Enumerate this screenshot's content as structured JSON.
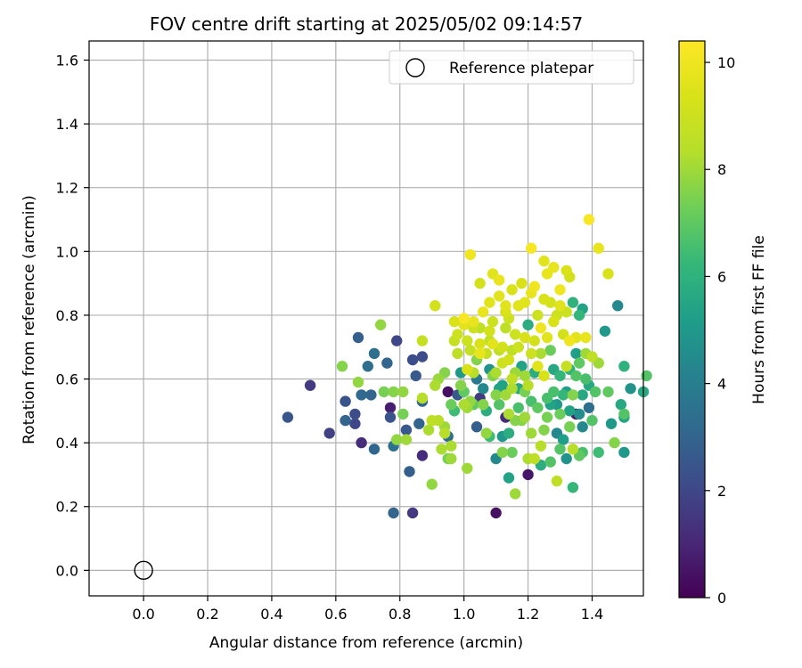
{
  "chart_data": {
    "type": "scatter",
    "title": "FOV centre drift starting at 2025/05/02 09:14:57",
    "xlabel": "Angular distance from reference (arcmin)",
    "ylabel": "Rotation from reference (arcmin)",
    "xlim": [
      -0.17,
      1.56
    ],
    "ylim": [
      -0.08,
      1.66
    ],
    "xticks": [
      0.0,
      0.2,
      0.4,
      0.6,
      0.8,
      1.0,
      1.2,
      1.4
    ],
    "xtick_labels": [
      "0.0",
      "0.2",
      "0.4",
      "0.6",
      "0.8",
      "1.0",
      "1.2",
      "1.4"
    ],
    "yticks": [
      0.0,
      0.2,
      0.4,
      0.6,
      0.8,
      1.0,
      1.2,
      1.4,
      1.6
    ],
    "ytick_labels": [
      "0.0",
      "0.2",
      "0.4",
      "0.6",
      "0.8",
      "1.0",
      "1.2",
      "1.4",
      "1.6"
    ],
    "grid": true,
    "legend": {
      "position": "top-right",
      "entries": [
        "Reference platepar"
      ]
    },
    "reference_point": {
      "name": "Reference platepar",
      "x": 0.0,
      "y": 0.0
    },
    "colorbar": {
      "label": "Hours from first FF file",
      "colormap": "viridis",
      "range": [
        0,
        10.4
      ],
      "ticks": [
        0,
        2,
        4,
        6,
        8,
        10
      ],
      "tick_labels": [
        "0",
        "2",
        "4",
        "6",
        "8",
        "10"
      ]
    },
    "points": [
      [
        0.45,
        0.48,
        2.5
      ],
      [
        0.52,
        0.58,
        1.6
      ],
      [
        0.58,
        0.43,
        1.8
      ],
      [
        0.62,
        0.64,
        7.6
      ],
      [
        0.63,
        0.53,
        2.4
      ],
      [
        0.63,
        0.47,
        3.0
      ],
      [
        0.66,
        0.49,
        2.2
      ],
      [
        0.66,
        0.46,
        2.0
      ],
      [
        0.67,
        0.73,
        2.8
      ],
      [
        0.67,
        0.59,
        7.8
      ],
      [
        0.68,
        0.4,
        1.2
      ],
      [
        0.68,
        0.55,
        3.2
      ],
      [
        0.7,
        0.64,
        3.4
      ],
      [
        0.71,
        0.55,
        3.0
      ],
      [
        0.72,
        0.68,
        3.4
      ],
      [
        0.72,
        0.38,
        3.1
      ],
      [
        0.74,
        0.77,
        7.8
      ],
      [
        0.75,
        0.56,
        7.4
      ],
      [
        0.76,
        0.65,
        3.0
      ],
      [
        0.77,
        0.51,
        0.8
      ],
      [
        0.77,
        0.48,
        2.4
      ],
      [
        0.78,
        0.39,
        3.5
      ],
      [
        0.78,
        0.56,
        7.6
      ],
      [
        0.78,
        0.18,
        3.0
      ],
      [
        0.79,
        0.72,
        2.0
      ],
      [
        0.79,
        0.41,
        7.8
      ],
      [
        0.81,
        0.49,
        7.4
      ],
      [
        0.81,
        0.56,
        7.8
      ],
      [
        0.82,
        0.44,
        2.6
      ],
      [
        0.82,
        0.41,
        8.0
      ],
      [
        0.83,
        0.31,
        2.8
      ],
      [
        0.84,
        0.18,
        1.6
      ],
      [
        0.84,
        0.66,
        2.2
      ],
      [
        0.85,
        0.61,
        2.6
      ],
      [
        0.86,
        0.46,
        3.0
      ],
      [
        0.87,
        0.36,
        1.2
      ],
      [
        0.87,
        0.53,
        3.0
      ],
      [
        0.87,
        0.67,
        2.2
      ],
      [
        0.87,
        0.54,
        8.4
      ],
      [
        0.87,
        0.72,
        8.8
      ],
      [
        0.89,
        0.44,
        8.2
      ],
      [
        0.9,
        0.27,
        7.8
      ],
      [
        0.9,
        0.47,
        8.6
      ],
      [
        0.91,
        0.58,
        8.2
      ],
      [
        0.91,
        0.83,
        9.2
      ],
      [
        0.92,
        0.47,
        8.4
      ],
      [
        0.92,
        0.6,
        7.9
      ],
      [
        0.93,
        0.38,
        8.2
      ],
      [
        0.94,
        0.45,
        8.0
      ],
      [
        0.94,
        0.43,
        8.4
      ],
      [
        0.94,
        0.62,
        7.6
      ],
      [
        0.95,
        0.56,
        0.4
      ],
      [
        0.95,
        0.42,
        3.4
      ],
      [
        0.95,
        0.35,
        7.4
      ],
      [
        0.96,
        0.52,
        7.2
      ],
      [
        0.96,
        0.39,
        8.2
      ],
      [
        0.96,
        0.35,
        8.0
      ],
      [
        0.97,
        0.72,
        8.8
      ],
      [
        0.97,
        0.78,
        9.4
      ],
      [
        0.97,
        0.5,
        6.4
      ],
      [
        0.98,
        0.55,
        2.6
      ],
      [
        0.98,
        0.68,
        8.6
      ],
      [
        0.98,
        0.74,
        9.0
      ],
      [
        0.99,
        0.58,
        7.6
      ],
      [
        0.99,
        0.62,
        5.0
      ],
      [
        1.0,
        0.77,
        9.6
      ],
      [
        1.0,
        0.79,
        10.2
      ],
      [
        1.0,
        0.52,
        8.2
      ],
      [
        1.0,
        0.56,
        7.0
      ],
      [
        1.01,
        0.32,
        8.0
      ],
      [
        1.01,
        0.51,
        8.0
      ],
      [
        1.01,
        0.63,
        9.4
      ],
      [
        1.01,
        0.72,
        9.0
      ],
      [
        1.02,
        0.99,
        10.0
      ],
      [
        1.02,
        0.69,
        8.8
      ],
      [
        1.02,
        0.53,
        7.8
      ],
      [
        1.03,
        0.78,
        9.8
      ],
      [
        1.03,
        0.62,
        8.4
      ],
      [
        1.03,
        0.76,
        9.0
      ],
      [
        1.03,
        0.52,
        7.0
      ],
      [
        1.04,
        0.6,
        3.8
      ],
      [
        1.04,
        0.66,
        7.6
      ],
      [
        1.04,
        0.45,
        2.8
      ],
      [
        1.05,
        0.9,
        9.2
      ],
      [
        1.05,
        0.76,
        8.6
      ],
      [
        1.05,
        0.71,
        9.4
      ],
      [
        1.05,
        0.54,
        1.6
      ],
      [
        1.05,
        0.68,
        9.8
      ],
      [
        1.06,
        0.57,
        4.4
      ],
      [
        1.06,
        0.81,
        9.8
      ],
      [
        1.06,
        0.52,
        7.6
      ],
      [
        1.07,
        0.68,
        8.8
      ],
      [
        1.07,
        0.5,
        5.8
      ],
      [
        1.07,
        0.43,
        7.8
      ],
      [
        1.08,
        0.75,
        9.2
      ],
      [
        1.08,
        0.84,
        9.6
      ],
      [
        1.08,
        0.63,
        4.8
      ],
      [
        1.08,
        0.72,
        8.6
      ],
      [
        1.08,
        0.42,
        6.4
      ],
      [
        1.09,
        0.93,
        9.6
      ],
      [
        1.09,
        0.78,
        9.0
      ],
      [
        1.09,
        0.71,
        9.6
      ],
      [
        1.09,
        0.61,
        7.6
      ],
      [
        1.1,
        0.55,
        7.6
      ],
      [
        1.1,
        0.62,
        8.2
      ],
      [
        1.1,
        0.35,
        4.4
      ],
      [
        1.1,
        0.18,
        0.4
      ],
      [
        1.11,
        0.86,
        9.6
      ],
      [
        1.11,
        0.91,
        9.8
      ],
      [
        1.11,
        0.69,
        8.6
      ],
      [
        1.11,
        0.57,
        5.4
      ],
      [
        1.11,
        0.52,
        6.8
      ],
      [
        1.12,
        0.58,
        5.4
      ],
      [
        1.12,
        0.42,
        5.0
      ],
      [
        1.12,
        0.37,
        7.6
      ],
      [
        1.12,
        0.65,
        9.0
      ],
      [
        1.12,
        0.7,
        9.2
      ],
      [
        1.13,
        0.76,
        8.6
      ],
      [
        1.13,
        0.81,
        9.4
      ],
      [
        1.13,
        0.48,
        1.2
      ],
      [
        1.13,
        0.83,
        9.6
      ],
      [
        1.13,
        0.55,
        8.0
      ],
      [
        1.14,
        0.79,
        9.0
      ],
      [
        1.14,
        0.66,
        9.2
      ],
      [
        1.14,
        0.49,
        8.2
      ],
      [
        1.14,
        0.43,
        5.8
      ],
      [
        1.14,
        0.29,
        5.4
      ],
      [
        1.15,
        0.69,
        8.6
      ],
      [
        1.15,
        0.57,
        8.2
      ],
      [
        1.15,
        0.6,
        8.6
      ],
      [
        1.15,
        0.37,
        7.2
      ],
      [
        1.15,
        0.88,
        9.4
      ],
      [
        1.16,
        0.74,
        9.0
      ],
      [
        1.16,
        0.47,
        7.6
      ],
      [
        1.16,
        0.24,
        8.0
      ],
      [
        1.16,
        0.62,
        8.0
      ],
      [
        1.17,
        0.83,
        9.6
      ],
      [
        1.17,
        0.7,
        9.0
      ],
      [
        1.17,
        0.57,
        5.6
      ],
      [
        1.17,
        0.51,
        6.6
      ],
      [
        1.18,
        0.64,
        5.4
      ],
      [
        1.18,
        0.9,
        9.4
      ],
      [
        1.18,
        0.47,
        7.6
      ],
      [
        1.19,
        0.73,
        9.4
      ],
      [
        1.19,
        0.56,
        7.4
      ],
      [
        1.19,
        0.48,
        8.0
      ],
      [
        1.19,
        0.84,
        9.6
      ],
      [
        1.19,
        0.61,
        8.0
      ],
      [
        1.2,
        0.3,
        0.6
      ],
      [
        1.2,
        0.35,
        8.2
      ],
      [
        1.2,
        0.77,
        5.8
      ],
      [
        1.2,
        0.58,
        8.4
      ],
      [
        1.21,
        1.01,
        10.2
      ],
      [
        1.21,
        0.68,
        9.0
      ],
      [
        1.21,
        0.87,
        9.8
      ],
      [
        1.21,
        0.43,
        8.0
      ],
      [
        1.21,
        0.53,
        6.6
      ],
      [
        1.22,
        0.89,
        10.0
      ],
      [
        1.22,
        0.62,
        5.8
      ],
      [
        1.22,
        0.72,
        9.2
      ],
      [
        1.22,
        0.35,
        8.6
      ],
      [
        1.23,
        0.64,
        9.6
      ],
      [
        1.23,
        0.8,
        9.0
      ],
      [
        1.23,
        0.51,
        7.0
      ],
      [
        1.24,
        0.68,
        8.2
      ],
      [
        1.24,
        0.39,
        8.4
      ],
      [
        1.24,
        0.33,
        5.8
      ],
      [
        1.24,
        0.76,
        10.0
      ],
      [
        1.25,
        0.97,
        9.6
      ],
      [
        1.25,
        0.85,
        9.4
      ],
      [
        1.25,
        0.61,
        9.4
      ],
      [
        1.25,
        0.44,
        7.6
      ],
      [
        1.26,
        0.54,
        6.6
      ],
      [
        1.26,
        0.73,
        9.6
      ],
      [
        1.26,
        0.93,
        9.8
      ],
      [
        1.26,
        0.48,
        7.4
      ],
      [
        1.27,
        0.52,
        5.4
      ],
      [
        1.27,
        0.84,
        9.2
      ],
      [
        1.27,
        0.69,
        7.2
      ],
      [
        1.27,
        0.34,
        6.8
      ],
      [
        1.28,
        0.95,
        9.8
      ],
      [
        1.28,
        0.63,
        5.6
      ],
      [
        1.28,
        0.78,
        9.4
      ],
      [
        1.28,
        0.56,
        6.6
      ],
      [
        1.29,
        0.8,
        9.0
      ],
      [
        1.29,
        0.52,
        5.0
      ],
      [
        1.29,
        0.43,
        4.4
      ],
      [
        1.29,
        0.28,
        8.6
      ],
      [
        1.3,
        0.88,
        10.0
      ],
      [
        1.3,
        0.83,
        9.6
      ],
      [
        1.3,
        0.49,
        7.2
      ],
      [
        1.3,
        0.38,
        6.8
      ],
      [
        1.3,
        0.61,
        6.2
      ],
      [
        1.31,
        0.55,
        6.2
      ],
      [
        1.31,
        0.41,
        5.2
      ],
      [
        1.31,
        0.74,
        9.2
      ],
      [
        1.32,
        0.94,
        9.4
      ],
      [
        1.32,
        0.64,
        8.8
      ],
      [
        1.32,
        0.56,
        5.2
      ],
      [
        1.32,
        0.35,
        4.8
      ],
      [
        1.32,
        0.81,
        9.0
      ],
      [
        1.33,
        0.92,
        9.2
      ],
      [
        1.33,
        0.45,
        7.4
      ],
      [
        1.33,
        0.5,
        5.4
      ],
      [
        1.33,
        0.72,
        10.0
      ],
      [
        1.33,
        0.63,
        6.0
      ],
      [
        1.34,
        0.84,
        6.0
      ],
      [
        1.34,
        0.55,
        7.6
      ],
      [
        1.34,
        0.26,
        6.2
      ],
      [
        1.34,
        0.38,
        8.4
      ],
      [
        1.35,
        0.61,
        6.8
      ],
      [
        1.35,
        0.49,
        0.6
      ],
      [
        1.35,
        0.73,
        9.6
      ],
      [
        1.35,
        0.68,
        5.2
      ],
      [
        1.36,
        0.65,
        7.0
      ],
      [
        1.36,
        0.8,
        6.2
      ],
      [
        1.36,
        0.49,
        4.6
      ],
      [
        1.36,
        0.36,
        7.0
      ],
      [
        1.37,
        0.82,
        5.4
      ],
      [
        1.37,
        0.55,
        5.6
      ],
      [
        1.37,
        0.45,
        4.4
      ],
      [
        1.37,
        0.37,
        6.6
      ],
      [
        1.38,
        0.6,
        6.6
      ],
      [
        1.38,
        0.73,
        9.8
      ],
      [
        1.38,
        0.68,
        8.0
      ],
      [
        1.39,
        1.1,
        10.2
      ],
      [
        1.39,
        0.51,
        3.4
      ],
      [
        1.39,
        0.58,
        5.6
      ],
      [
        1.4,
        0.67,
        8.6
      ],
      [
        1.4,
        0.47,
        6.8
      ],
      [
        1.41,
        0.56,
        6.8
      ],
      [
        1.42,
        0.65,
        8.0
      ],
      [
        1.42,
        1.01,
        9.8
      ],
      [
        1.42,
        0.37,
        6.4
      ],
      [
        1.44,
        0.75,
        5.0
      ],
      [
        1.45,
        0.56,
        7.0
      ],
      [
        1.45,
        0.93,
        9.4
      ],
      [
        1.46,
        0.46,
        5.0
      ],
      [
        1.47,
        0.4,
        7.6
      ],
      [
        1.48,
        0.83,
        4.4
      ],
      [
        1.49,
        0.52,
        5.6
      ],
      [
        1.5,
        0.49,
        6.8
      ],
      [
        1.5,
        0.64,
        6.0
      ],
      [
        1.5,
        0.37,
        5.0
      ],
      [
        1.5,
        0.48,
        5.4
      ],
      [
        1.52,
        0.57,
        4.8
      ],
      [
        1.56,
        0.56,
        5.6
      ],
      [
        1.57,
        0.61,
        6.8
      ]
    ]
  }
}
